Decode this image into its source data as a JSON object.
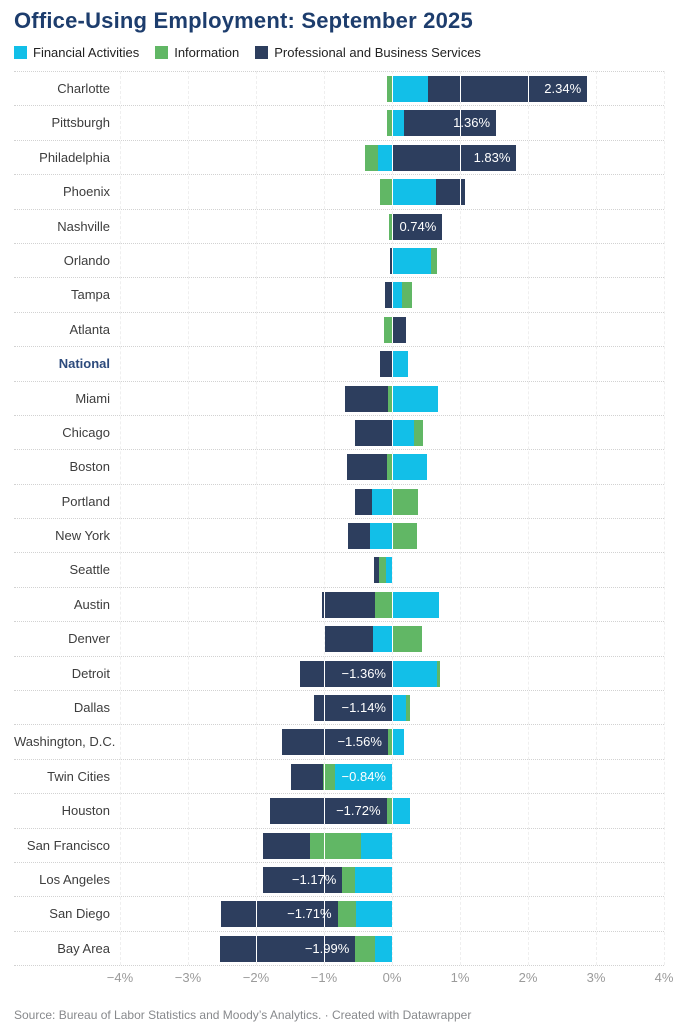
{
  "title": "Office-Using Employment: September 2025",
  "legend": {
    "items": [
      {
        "key": "financial",
        "label": "Financial Activities",
        "color": "#12bfe8"
      },
      {
        "key": "information",
        "label": "Information",
        "color": "#61b765"
      },
      {
        "key": "professional",
        "label": "Professional and Business Services",
        "color": "#2d3e5e"
      }
    ]
  },
  "chart_data": {
    "type": "bar",
    "subtype": "diverging-stacked-horizontal",
    "title": "Office-Using Employment: September 2025",
    "xlabel": "",
    "ylabel": "",
    "unit": "%",
    "xlim": [
      -4,
      4
    ],
    "grid": "vertical",
    "legend_position": "top",
    "series_order": [
      "financial",
      "information",
      "professional"
    ],
    "axis_ticks": [
      {
        "value": -4,
        "label": "−4%"
      },
      {
        "value": -3,
        "label": "−3%"
      },
      {
        "value": -2,
        "label": "−2%"
      },
      {
        "value": -1,
        "label": "−1%"
      },
      {
        "value": 0,
        "label": "0%"
      },
      {
        "value": 1,
        "label": "1%"
      },
      {
        "value": 2,
        "label": "2%"
      },
      {
        "value": 3,
        "label": "3%"
      },
      {
        "value": 4,
        "label": "4%"
      }
    ],
    "rows": [
      {
        "city": "Charlotte",
        "financial": 0.53,
        "information": -0.07,
        "professional": 2.34,
        "label": "2.34%",
        "label_on": "professional"
      },
      {
        "city": "Pittsburgh",
        "financial": 0.17,
        "information": -0.07,
        "professional": 1.36,
        "label": "1.36%",
        "label_on": "professional"
      },
      {
        "city": "Philadelphia",
        "financial": -0.2,
        "information": -0.2,
        "professional": 1.83,
        "label": "1.83%",
        "label_on": "professional"
      },
      {
        "city": "Phoenix",
        "financial": 0.65,
        "information": -0.18,
        "professional": 0.42
      },
      {
        "city": "Nashville",
        "financial": 0.0,
        "information": -0.05,
        "professional": 0.74,
        "label": "0.74%",
        "label_on": "professional"
      },
      {
        "city": "Orlando",
        "financial": 0.57,
        "information": 0.09,
        "professional": -0.03
      },
      {
        "city": "Tampa",
        "financial": 0.15,
        "information": 0.15,
        "professional": -0.1
      },
      {
        "city": "Atlanta",
        "financial": 0.0,
        "information": -0.12,
        "professional": 0.2
      },
      {
        "city": "National",
        "financial": 0.23,
        "information": 0.0,
        "professional": -0.17,
        "emphasis": true
      },
      {
        "city": "Miami",
        "financial": 0.68,
        "information": -0.06,
        "professional": -0.63
      },
      {
        "city": "Chicago",
        "financial": 0.33,
        "information": 0.12,
        "professional": -0.55
      },
      {
        "city": "Boston",
        "financial": 0.52,
        "information": -0.08,
        "professional": -0.58
      },
      {
        "city": "Portland",
        "financial": -0.29,
        "information": 0.38,
        "professional": -0.26
      },
      {
        "city": "New York",
        "financial": -0.33,
        "information": 0.37,
        "professional": -0.32
      },
      {
        "city": "Seattle",
        "financial": -0.09,
        "information": -0.1,
        "professional": -0.07
      },
      {
        "city": "Austin",
        "financial": 0.69,
        "information": -0.25,
        "professional": -0.78
      },
      {
        "city": "Denver",
        "financial": -0.28,
        "information": 0.44,
        "professional": -0.7
      },
      {
        "city": "Detroit",
        "financial": 0.66,
        "information": 0.05,
        "professional": -1.36,
        "label": "−1.36%",
        "label_on": "professional"
      },
      {
        "city": "Dallas",
        "financial": 0.2,
        "information": 0.07,
        "professional": -1.14,
        "label": "−1.14%",
        "label_on": "professional"
      },
      {
        "city": "Washington, D.C.",
        "financial": 0.17,
        "information": -0.06,
        "professional": -1.56,
        "label": "−1.56%",
        "label_on": "professional"
      },
      {
        "city": "Twin Cities",
        "financial": -0.84,
        "information": -0.17,
        "professional": -0.48,
        "label": "−0.84%",
        "label_on": "financial"
      },
      {
        "city": "Houston",
        "financial": 0.26,
        "information": -0.08,
        "professional": -1.72,
        "label": "−1.72%",
        "label_on": "professional"
      },
      {
        "city": "San Francisco",
        "financial": -0.46,
        "information": -0.75,
        "professional": -0.68
      },
      {
        "city": "Los Angeles",
        "financial": -0.55,
        "information": -0.18,
        "professional": -1.17,
        "label": "−1.17%",
        "label_on": "professional"
      },
      {
        "city": "San Diego",
        "financial": -0.53,
        "information": -0.27,
        "professional": -1.71,
        "label": "−1.71%",
        "label_on": "professional"
      },
      {
        "city": "Bay Area",
        "financial": -0.25,
        "information": -0.29,
        "professional": -1.99,
        "label": "−1.99%",
        "label_on": "professional"
      }
    ]
  },
  "footer": "Source: Bureau of Labor Statistics and Moody’s Analytics. · Created with Datawrapper"
}
